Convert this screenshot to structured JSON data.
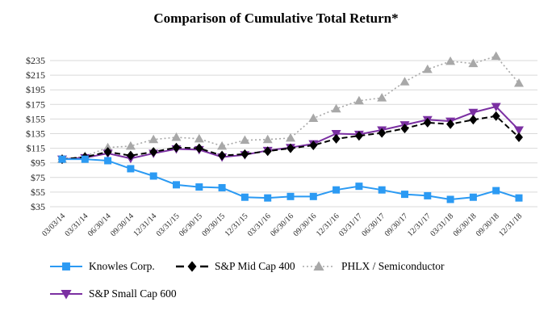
{
  "title": "Comparison of Cumulative Total Return*",
  "chart_data": {
    "type": "line",
    "title": "Comparison of Cumulative Total Return*",
    "x_labels": [
      "03/03/14",
      "03/31/14",
      "06/30/14",
      "09/30/14",
      "12/31/14",
      "03/31/15",
      "06/30/15",
      "09/30/15",
      "12/31/15",
      "03/31/16",
      "06/30/16",
      "09/30/16",
      "12/31/16",
      "03/31/17",
      "06/30/17",
      "09/30/17",
      "12/31/17",
      "03/31/18",
      "06/30/18",
      "09/30/18",
      "12/31/18"
    ],
    "ylim": [
      35,
      235
    ],
    "ytick_step": 20,
    "ytick_prefix": "$",
    "ytick_labels": [
      "$35",
      "$55",
      "$75",
      "$95",
      "$115",
      "$135",
      "$155",
      "$175",
      "$195",
      "$215",
      "$235"
    ],
    "grid": "horizontal",
    "legend_position": "bottom",
    "series": [
      {
        "name": "Knowles Corp.",
        "color": "#2B9AF3",
        "marker": "square",
        "line": "solid",
        "values": [
          100,
          100,
          98,
          87,
          77,
          65,
          62,
          61,
          48,
          47,
          49,
          49,
          58,
          63,
          58,
          52,
          50,
          45,
          48,
          57,
          47
        ]
      },
      {
        "name": "S&P Mid Cap 400",
        "color": "#000000",
        "marker": "diamond",
        "line": "dashed",
        "values": [
          100,
          103,
          110,
          105,
          110,
          116,
          115,
          105,
          107,
          111,
          115,
          119,
          128,
          132,
          136,
          142,
          150,
          148,
          154,
          159,
          130
        ]
      },
      {
        "name": "PHLX / Semiconductor",
        "color": "#A8A8A8",
        "marker": "triangle-up",
        "line": "dotted",
        "values": [
          100,
          104,
          116,
          118,
          127,
          130,
          128,
          118,
          126,
          127,
          129,
          156,
          169,
          180,
          184,
          206,
          223,
          234,
          231,
          241,
          204
        ]
      },
      {
        "name": "S&P Small Cap 600",
        "color": "#7B30A2",
        "marker": "triangle-down",
        "line": "solid",
        "values": [
          100,
          102,
          108,
          101,
          108,
          114,
          113,
          103,
          106,
          112,
          116,
          121,
          135,
          134,
          140,
          147,
          154,
          152,
          164,
          172,
          140
        ]
      }
    ]
  }
}
